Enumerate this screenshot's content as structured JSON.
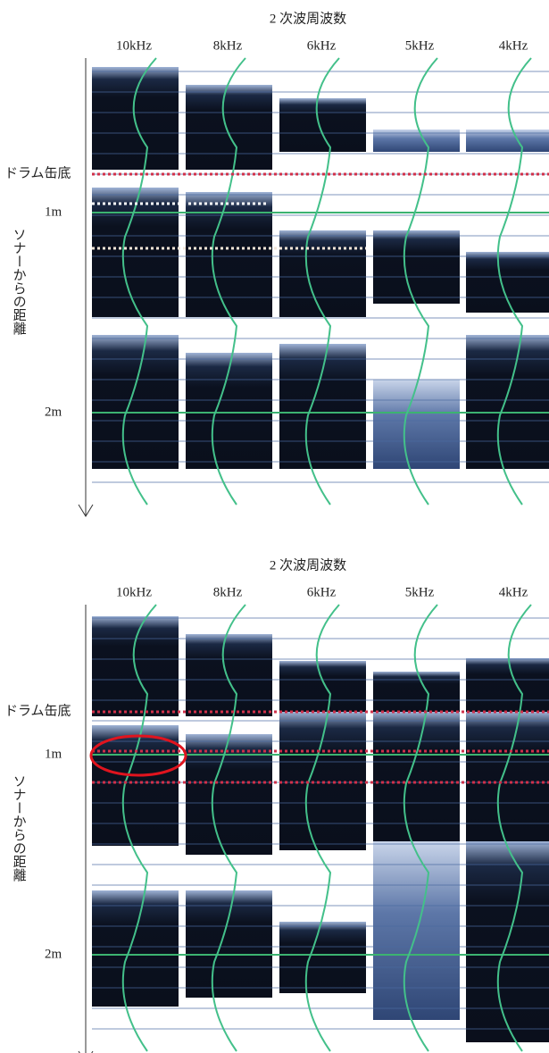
{
  "panels": [
    {
      "title": "2 次波周波数",
      "frequencies": [
        "10kHz",
        "8kHz",
        "6kHz",
        "5kHz",
        "4kHz"
      ],
      "bottom_label": "ドラム缶底",
      "distance_labels": [
        "1m",
        "2m"
      ],
      "axis_label": "ソナーからの距離"
    },
    {
      "title": "2 次波周波数",
      "frequencies": [
        "10kHz",
        "8kHz",
        "6kHz",
        "5kHz",
        "4kHz"
      ],
      "bottom_label": "ドラム缶底",
      "distance_labels": [
        "1m",
        "2m"
      ],
      "axis_label": "ソナーからの距離"
    }
  ]
}
